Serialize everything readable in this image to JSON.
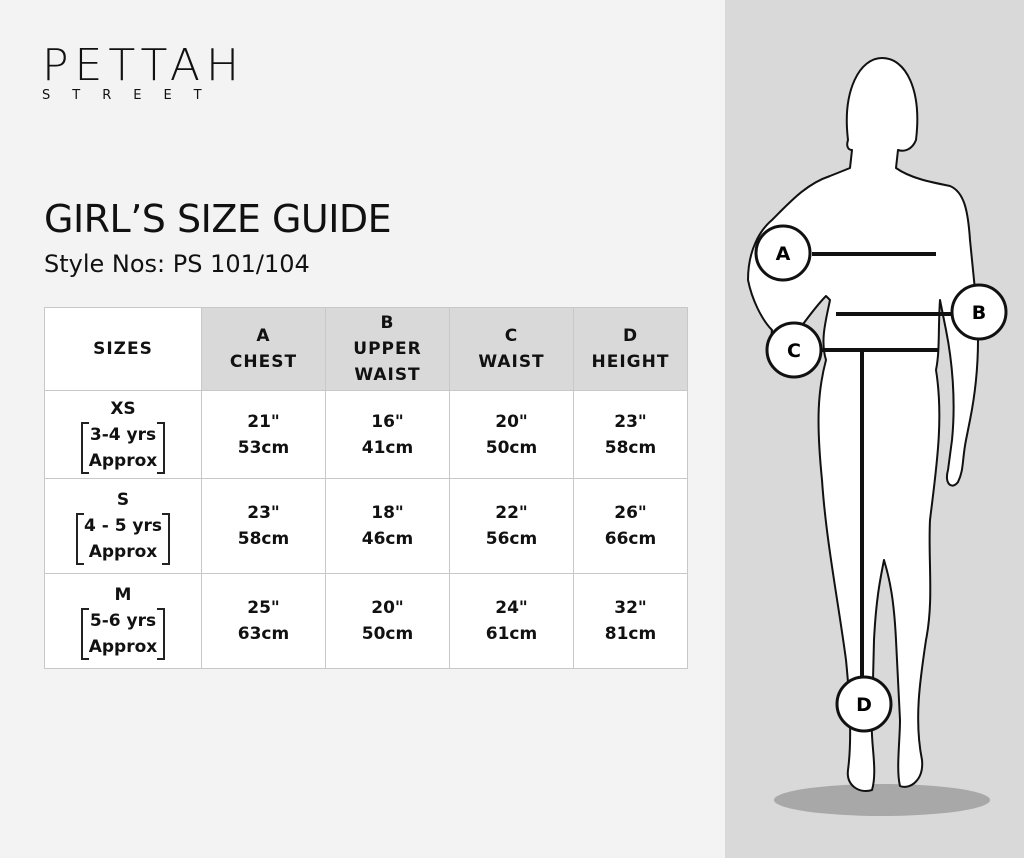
{
  "brand": {
    "name": "PETTAH",
    "sub": "STREET"
  },
  "title": "GIRL’S SIZE GUIDE",
  "subtitle": "Style Nos: PS 101/104",
  "table": {
    "headers": [
      {
        "lines": [
          "SIZES"
        ]
      },
      {
        "lines": [
          "A",
          "CHEST"
        ]
      },
      {
        "lines": [
          "B",
          "UPPER",
          "WAIST"
        ]
      },
      {
        "lines": [
          "C",
          "WAIST"
        ]
      },
      {
        "lines": [
          "D",
          "HEIGHT"
        ]
      }
    ],
    "rows": [
      {
        "size": "XS",
        "age": "3-4 yrs",
        "approx": "Approx",
        "cells": [
          [
            "21\"",
            "53cm"
          ],
          [
            "16\"",
            "41cm"
          ],
          [
            "20\"",
            "50cm"
          ],
          [
            "23\"",
            "58cm"
          ]
        ]
      },
      {
        "size": "S",
        "age": "4 - 5 yrs",
        "approx": "Approx",
        "cells": [
          [
            "23\"",
            "58cm"
          ],
          [
            "18\"",
            "46cm"
          ],
          [
            "22\"",
            "56cm"
          ],
          [
            "26\"",
            "66cm"
          ]
        ]
      },
      {
        "size": "M",
        "age": "5-6 yrs",
        "approx": "Approx",
        "cells": [
          [
            "25\"",
            "63cm"
          ],
          [
            "20\"",
            "50cm"
          ],
          [
            "24\"",
            "61cm"
          ],
          [
            "32\"",
            "81cm"
          ]
        ]
      }
    ]
  },
  "figure": {
    "labels": {
      "a": "A",
      "b": "B",
      "c": "C",
      "d": "D"
    }
  },
  "colors": {
    "background": "#f3f3f3",
    "panel": "#d9d9d9",
    "header_cell": "#d9d9d9",
    "shadow": "#a8a8a8"
  }
}
